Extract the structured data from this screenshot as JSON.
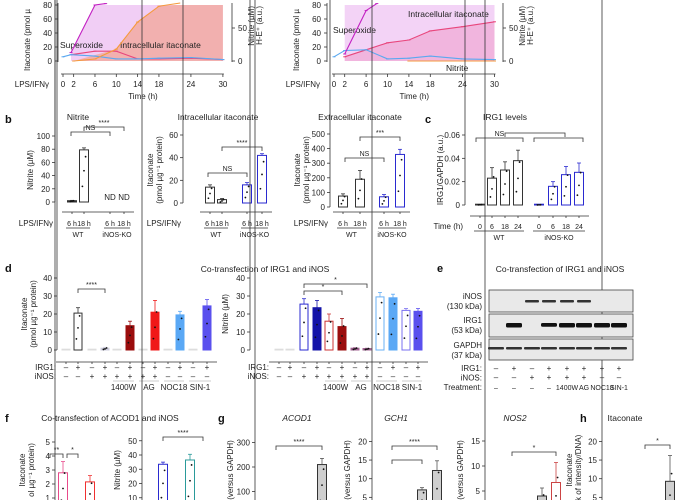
{
  "panel_labels": {
    "b": "b",
    "c": "c",
    "d": "d",
    "e": "e",
    "f": "f",
    "g": "g",
    "h": "h"
  },
  "colors": {
    "intracellular_itaconate": "#e8467c",
    "extracellular_itaconate": "#c21fc2",
    "nitrite": "#f59a3c",
    "superoxide": "#5aa8f0",
    "wt": "#333333",
    "inos_ko": "#2a2ad0",
    "1400W": "#9b0d0d",
    "AG": "#f01818",
    "NOC18": "#5aa8f5",
    "SIN-1": "#5a50ee"
  },
  "chart_data": [
    {
      "id": "a-left",
      "type": "line",
      "x_prefix_label": "LPS/IFNγ",
      "xlabel": "Time (h)",
      "ylabel": "Itaconate (pmol µ",
      "y2label": "Nitrite (µM)",
      "y3label": "H-E⁺ (a.u.)",
      "xticks": [
        "0",
        "2",
        "6",
        "10",
        "14",
        "18",
        "24",
        "30"
      ],
      "yticks": [
        "0",
        "20",
        "40",
        "60",
        "80"
      ],
      "y2ticks": [
        "0",
        "50"
      ],
      "annotations": [
        "Superoxide",
        "Intracellular itaconate"
      ],
      "series": [
        {
          "name": "Intracellular itaconate",
          "axis": "left",
          "x": [
            1.5,
            6,
            10,
            14,
            18,
            24,
            30
          ],
          "y": [
            9,
            14,
            14,
            3,
            3,
            4,
            2
          ]
        },
        {
          "name": "Superoxide",
          "axis": "left",
          "x": [
            0,
            1.5,
            6,
            10,
            14,
            18,
            24,
            30
          ],
          "y": [
            6,
            9,
            7,
            3,
            3,
            4,
            5,
            2
          ]
        },
        {
          "axis": "left",
          "x": [
            1.5,
            6,
            8
          ],
          "y": [
            12,
            80,
            82
          ]
        },
        {
          "axis": "right",
          "x": [
            2,
            6,
            10,
            14,
            18,
            22
          ],
          "y": [
            0,
            3,
            18,
            59,
            83,
            95
          ]
        }
      ]
    },
    {
      "id": "a-right",
      "type": "line",
      "x_prefix_label": "LPS/IFNγ",
      "xlabel": "Time (h)",
      "ylabel": "Itaconate (pmol µ",
      "y2label": "Nitrite (µM)",
      "y3label": "H-E⁺ (a.u.)",
      "xticks": [
        "0",
        "2",
        "6",
        "10",
        "14",
        "18",
        "24",
        "30"
      ],
      "yticks": [
        "0",
        "20",
        "40",
        "60",
        "80"
      ],
      "y2ticks": [
        "0",
        "50"
      ],
      "annotations": [
        "Superoxide",
        "Intracellular itaconate",
        "Nitrite"
      ],
      "series": [
        {
          "name": "Intracellular itaconate",
          "axis": "left",
          "x": [
            2,
            6,
            10,
            14,
            18,
            24,
            30
          ],
          "y": [
            6,
            16,
            26,
            30,
            43,
            49,
            56
          ]
        },
        {
          "name": "Superoxide",
          "axis": "left",
          "x": [
            0,
            2,
            6,
            10,
            14,
            18,
            24,
            30
          ],
          "y": [
            6,
            15,
            16,
            3,
            4,
            7,
            3,
            2
          ]
        },
        {
          "axis": "left",
          "x": [
            2,
            6,
            8
          ],
          "y": [
            10,
            72,
            82
          ]
        },
        {
          "name": "Nitrite",
          "axis": "right",
          "x": [
            14,
            18,
            24,
            30
          ],
          "y": [
            0,
            0,
            0,
            0
          ]
        }
      ]
    },
    {
      "id": "b-nitrite",
      "type": "bar",
      "title": "Nitrite",
      "ylabel": "Nitrite (µM)",
      "yticks": [
        "0",
        "20",
        "40",
        "60",
        "80",
        "100"
      ],
      "x_prefix_label": "LPS/IFNγ",
      "categories": [
        "6 h",
        "18 h",
        "6 h",
        "18 h"
      ],
      "groups": [
        "WT",
        "iNOS-KO"
      ],
      "values": [
        2,
        79,
        null,
        null
      ],
      "errors": [
        0.5,
        3,
        null,
        null
      ],
      "value_labels": [
        "",
        "",
        "ND",
        "ND"
      ],
      "sig": [
        "NS",
        "****"
      ]
    },
    {
      "id": "b-intra",
      "type": "bar",
      "title": "Intracellular itaconate",
      "ylabel": "Itaconate",
      "ylabel2": "(pmol µg⁻¹ protein)",
      "yticks": [
        "0",
        "20",
        "40",
        "60"
      ],
      "x_prefix_label": "LPS/IFNγ",
      "categories": [
        "6 h",
        "18 h",
        "6 h",
        "18 h"
      ],
      "groups": [
        "WT",
        "iNOS-KO"
      ],
      "values": [
        14,
        3,
        16,
        42
      ],
      "errors": [
        2,
        1,
        2,
        1.5
      ],
      "sig": [
        "NS",
        "****"
      ]
    },
    {
      "id": "b-extra",
      "type": "bar",
      "title": "Extracellular itaconate",
      "ylabel": "Itaconate",
      "ylabel2": "(pmol µg⁻¹ protein)",
      "yticks": [
        "0",
        "100",
        "200",
        "300",
        "400",
        "500"
      ],
      "x_prefix_label": "LPS/IFNγ",
      "categories": [
        "6 h",
        "18 h",
        "6 h",
        "18 h"
      ],
      "groups": [
        "WT",
        "iNOS-KO"
      ],
      "values": [
        75,
        190,
        70,
        360
      ],
      "errors": [
        15,
        60,
        15,
        35
      ],
      "sig": [
        "NS",
        "***"
      ]
    },
    {
      "id": "c-irg1",
      "type": "bar",
      "title": "IRG1 levels",
      "ylabel": "IRG1/GAPDH (a.u.)",
      "yticks": [
        "0",
        "0.02",
        "0.04",
        "0.06"
      ],
      "x_prefix_label": "Time (h)",
      "categories": [
        "0",
        "6",
        "18",
        "24",
        "0",
        "6",
        "18",
        "24"
      ],
      "groups": [
        "WT",
        "iNOS-KO"
      ],
      "values": [
        0.0003,
        0.023,
        0.03,
        0.038,
        0.0002,
        0.016,
        0.026,
        0.028
      ],
      "errors": [
        0,
        0.009,
        0.007,
        0.009,
        0,
        0.004,
        0.007,
        0.008
      ],
      "sig": [
        "NS"
      ]
    },
    {
      "id": "d-itaconate",
      "type": "bar",
      "title": "Co-transfection of IRG1 and iNOS",
      "ylabel": "Itaconate",
      "ylabel2": "(pmol µg⁻¹ protein)",
      "yticks": [
        "0",
        "10",
        "20",
        "30",
        "40"
      ],
      "row_labels": [
        "IRG1:",
        "iNOS:"
      ],
      "irg1": [
        "–",
        "+",
        "–",
        "+",
        "–",
        "+",
        "–",
        "+",
        "–",
        "+",
        "–",
        "+"
      ],
      "inos": [
        "–",
        "–",
        "+",
        "+",
        "+",
        "+",
        "+",
        "+",
        "–",
        "–",
        "–",
        "–"
      ],
      "treatments": [
        "1400W",
        "AG",
        "NOC18",
        "SIN-1"
      ],
      "values": [
        0,
        20.5,
        0,
        1,
        0,
        13.5,
        0,
        21,
        0,
        19.5,
        0,
        24.5
      ],
      "errors": [
        0,
        3,
        0,
        0.5,
        0,
        2.5,
        0,
        6.5,
        0,
        2,
        0,
        3.5
      ],
      "sig": [
        "****"
      ]
    },
    {
      "id": "d-nitrite",
      "type": "bar",
      "ylabel": "Nitrite (µM)",
      "yticks": [
        "0",
        "10",
        "20",
        "30",
        "40"
      ],
      "row_labels": [
        "IRG1:",
        "iNOS:"
      ],
      "irg1": [
        "–",
        "+",
        "–",
        "+",
        "–",
        "+",
        "–",
        "+",
        "–",
        "+",
        "–",
        "+"
      ],
      "inos": [
        "–",
        "–",
        "+",
        "+",
        "+",
        "+",
        "+",
        "+",
        "–",
        "–",
        "–",
        "–"
      ],
      "treatments": [
        "1400W",
        "AG",
        "NOC18",
        "SIN-1"
      ],
      "values": [
        0,
        0,
        25.5,
        23.5,
        16,
        13,
        1,
        0.8,
        29.5,
        29,
        22,
        21.5
      ],
      "errors": [
        0,
        0,
        3,
        4,
        4,
        4.5,
        0.3,
        0.2,
        2.5,
        2,
        1,
        1.5
      ],
      "sig": [
        "*",
        "*",
        "****"
      ]
    },
    {
      "id": "e-blot",
      "type": "table",
      "title": "Co-transfection of IRG1 and iNOS",
      "bands": [
        "iNOS",
        "(130 kDa)",
        "IRG1",
        "(53 kDa)",
        "GAPDH",
        "(37 kDa)"
      ],
      "row_labels": [
        "IRG1:",
        "iNOS:",
        "Treatment:"
      ],
      "irg1": [
        "–",
        "+",
        "–",
        "+",
        "+",
        "+",
        "+",
        "+"
      ],
      "inos": [
        "–",
        "–",
        "+",
        "+",
        "+",
        "+",
        "–",
        "–"
      ],
      "treatment": [
        "–",
        "–",
        "–",
        "–",
        "1400W",
        "AG",
        "NOC18",
        "SIN-1"
      ],
      "inos_band": [
        0,
        0,
        1,
        1,
        1,
        1,
        0,
        0
      ],
      "irg1_band": [
        0,
        1,
        0,
        0.7,
        1,
        1,
        1,
        1
      ]
    },
    {
      "id": "f-itaconate",
      "type": "bar",
      "title": "Co-transfection of ACOD1 and iNOS",
      "ylabel": "Itaconate",
      "ylabel2": "ol µg⁻¹ protein)",
      "yticks": [
        "1",
        "2",
        "3",
        "4",
        "5"
      ],
      "values": [
        2.8,
        2.15
      ],
      "errors": [
        0.8,
        0.45
      ],
      "sig": [
        "**",
        "*"
      ]
    },
    {
      "id": "f-nitrite",
      "type": "bar",
      "ylabel": "Nitrite (µM)",
      "yticks": [
        "10",
        "20",
        "30",
        "40",
        "50"
      ],
      "values": [
        33.5,
        36.5
      ],
      "errors": [
        1.5,
        4
      ],
      "sig": [
        "****"
      ]
    },
    {
      "id": "g-acod1",
      "type": "bar",
      "title": "ACOD1",
      "ylabel": "(versus GAPDH)",
      "yticks": [
        "100",
        "200",
        "300"
      ],
      "values": [
        210
      ],
      "errors": [
        25
      ],
      "sig": [
        "****"
      ]
    },
    {
      "id": "g-gch1",
      "type": "bar",
      "title": "GCH1",
      "ylabel": "(versus GAPDH)",
      "yticks": [
        "5",
        "10",
        "15",
        "20"
      ],
      "values": [
        7,
        12.2
      ],
      "errors": [
        0.6,
        2.6
      ],
      "sig": [
        "****"
      ]
    },
    {
      "id": "g-nos2",
      "type": "bar",
      "title": "NOS2",
      "ylabel": "(versus GAPDH)",
      "yticks": [
        "5",
        "10",
        "15"
      ],
      "values": [
        4,
        6.7
      ],
      "errors": [
        1.6,
        4
      ],
      "sig": [
        "*"
      ]
    },
    {
      "id": "h-itaconate",
      "type": "bar",
      "title": "Itaconate",
      "ylabel": "Itaconate",
      "ylabel2": "ak of intensity/DNA)",
      "yticks": [
        "5",
        "10",
        "15",
        "20"
      ],
      "values": [
        9.3
      ],
      "errors": [
        6.9
      ],
      "sig": [
        "*"
      ]
    }
  ]
}
